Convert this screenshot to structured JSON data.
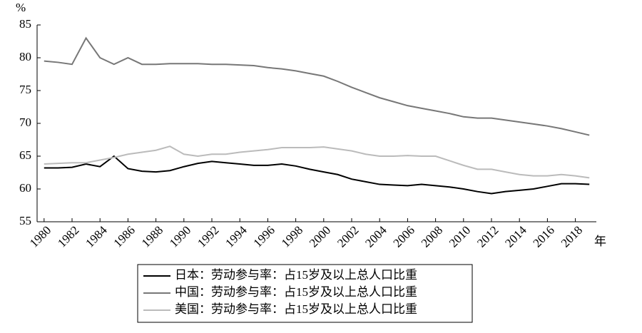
{
  "chart_data": {
    "type": "line",
    "x_label": "年",
    "y_label": "%",
    "x": [
      1980,
      1981,
      1982,
      1983,
      1984,
      1985,
      1986,
      1987,
      1988,
      1989,
      1990,
      1991,
      1992,
      1993,
      1994,
      1995,
      1996,
      1997,
      1998,
      1999,
      2000,
      2001,
      2002,
      2003,
      2004,
      2005,
      2006,
      2007,
      2008,
      2009,
      2010,
      2011,
      2012,
      2013,
      2014,
      2015,
      2016,
      2017,
      2018,
      2019
    ],
    "series": [
      {
        "name": "日本：劳动参与率：占15岁及以上总人口比重",
        "color": "#000000",
        "values": [
          63.2,
          63.2,
          63.3,
          63.8,
          63.4,
          65.0,
          63.1,
          62.7,
          62.6,
          62.8,
          63.4,
          63.9,
          64.2,
          64.0,
          63.8,
          63.6,
          63.6,
          63.8,
          63.5,
          63.0,
          62.6,
          62.2,
          61.5,
          61.1,
          60.7,
          60.6,
          60.5,
          60.7,
          60.5,
          60.3,
          60.0,
          59.6,
          59.3,
          59.6,
          59.8,
          60.0,
          60.4,
          60.8,
          60.8,
          60.7
        ]
      },
      {
        "name": "中国：劳动参与率：占15岁及以上总人口比重",
        "color": "#777777",
        "values": [
          79.5,
          79.3,
          79.0,
          83.0,
          80.0,
          79.0,
          80.0,
          79.0,
          79.0,
          79.1,
          79.1,
          79.1,
          79.0,
          79.0,
          78.9,
          78.8,
          78.5,
          78.3,
          78.0,
          77.6,
          77.2,
          76.4,
          75.5,
          74.7,
          73.9,
          73.3,
          72.7,
          72.3,
          71.9,
          71.5,
          71.0,
          70.8,
          70.8,
          70.5,
          70.2,
          69.9,
          69.6,
          69.2,
          68.7,
          68.2
        ]
      },
      {
        "name": "美国：劳动参与率：占15岁及以上总人口比重",
        "color": "#bbbbbb",
        "values": [
          63.8,
          63.9,
          64.0,
          64.0,
          64.4,
          64.8,
          65.3,
          65.6,
          65.9,
          66.5,
          65.3,
          65.0,
          65.3,
          65.3,
          65.6,
          65.8,
          66.0,
          66.3,
          66.3,
          66.3,
          66.4,
          66.1,
          65.8,
          65.3,
          65.0,
          65.0,
          65.1,
          65.0,
          65.0,
          64.3,
          63.6,
          63.0,
          63.0,
          62.6,
          62.2,
          62.0,
          62.0,
          62.2,
          62.0,
          61.7
        ]
      }
    ],
    "xlim": [
      1979.5,
      2019.5
    ],
    "xticks": [
      1980,
      1982,
      1984,
      1986,
      1988,
      1990,
      1992,
      1994,
      1996,
      1998,
      2000,
      2002,
      2004,
      2006,
      2008,
      2010,
      2012,
      2014,
      2016,
      2018
    ],
    "ylim": [
      55,
      85
    ],
    "yticks": [
      55,
      60,
      65,
      70,
      75,
      80,
      85
    ],
    "legend": "bottom"
  }
}
